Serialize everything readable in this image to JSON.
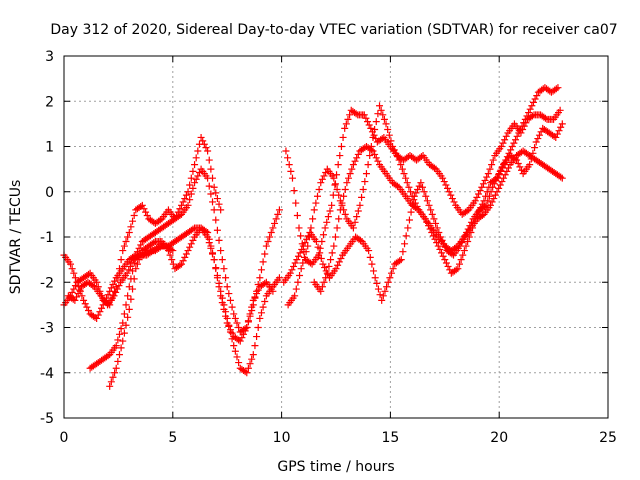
{
  "chart_data": {
    "type": "scatter",
    "title": "Day 312 of 2020, Sidereal Day-to-day VTEC variation (SDTVAR) for receiver ca07",
    "xlabel": "GPS time / hours",
    "ylabel": "SDTVAR / TECUs",
    "xlim": [
      0,
      25
    ],
    "ylim": [
      -5,
      3
    ],
    "xticks": [
      "0",
      "5",
      "10",
      "15",
      "20",
      "25"
    ],
    "yticks": [
      "-5",
      "-4",
      "-3",
      "-2",
      "-1",
      "0",
      "1",
      "2",
      "3"
    ],
    "grid": true,
    "marker": "+",
    "color": "#ff0000",
    "series": [
      {
        "x": [
          0.0,
          0.3,
          0.6,
          0.9,
          1.2,
          1.5,
          1.8,
          2.1,
          2.4,
          2.7,
          3.0,
          3.3,
          3.6,
          3.9,
          4.2,
          4.5,
          4.8,
          5.1,
          5.4,
          5.7,
          6.0,
          6.3,
          6.6,
          6.9,
          7.2
        ],
        "values": [
          -2.5,
          -2.3,
          -2.0,
          -1.9,
          -1.8,
          -2.0,
          -2.4,
          -2.5,
          -2.1,
          -1.3,
          -0.9,
          -0.4,
          -0.3,
          -0.6,
          -0.7,
          -0.6,
          -0.4,
          -0.6,
          -0.3,
          0.0,
          0.6,
          1.2,
          0.9,
          0.1,
          -0.4
        ]
      },
      {
        "x": [
          0.0,
          0.3,
          0.6,
          0.9,
          1.2,
          1.5,
          1.8,
          2.1,
          2.4,
          2.7,
          3.0,
          3.3,
          3.6,
          3.9,
          4.2,
          4.5,
          4.8,
          5.1,
          5.4,
          5.7,
          6.0,
          6.3,
          6.6,
          6.9,
          7.2,
          7.5,
          7.8,
          8.1,
          8.4,
          8.7,
          9.0,
          9.3,
          9.6
        ],
        "values": [
          -1.4,
          -1.6,
          -2.0,
          -2.4,
          -2.7,
          -2.8,
          -2.5,
          -2.2,
          -1.9,
          -1.7,
          -1.5,
          -1.4,
          -1.4,
          -1.3,
          -1.3,
          -1.2,
          -1.2,
          -1.1,
          -1.0,
          -0.9,
          -0.8,
          -0.8,
          -1.0,
          -1.5,
          -2.3,
          -2.9,
          -3.2,
          -3.3,
          -3.0,
          -2.4,
          -2.1,
          -2.0,
          -2.2
        ]
      },
      {
        "x": [
          1.2,
          1.5,
          1.8,
          2.1,
          2.4,
          2.7,
          3.0,
          3.3,
          3.6,
          3.9,
          4.2,
          4.5,
          4.8,
          5.1,
          5.4,
          5.7,
          6.0,
          6.3,
          6.6,
          6.9,
          7.2,
          7.5,
          7.8,
          8.1,
          8.4,
          8.7,
          9.0,
          9.3,
          9.6,
          9.9
        ],
        "values": [
          -3.9,
          -3.8,
          -3.7,
          -3.6,
          -3.4,
          -2.9,
          -2.1,
          -1.4,
          -1.1,
          -1.0,
          -0.9,
          -0.8,
          -0.7,
          -0.6,
          -0.5,
          -0.3,
          0.2,
          0.5,
          0.3,
          -0.4,
          -1.3,
          -2.1,
          -2.7,
          -3.1,
          -3.0,
          -2.5,
          -1.9,
          -1.2,
          -0.8,
          -0.4
        ]
      },
      {
        "x": [
          2.1,
          2.4,
          2.7,
          3.0,
          3.3,
          3.6,
          3.9,
          4.2,
          4.5,
          4.8,
          5.1,
          5.4,
          5.7,
          6.0,
          6.3,
          6.6,
          6.9,
          7.2,
          7.5,
          7.8,
          8.1,
          8.4,
          8.7,
          9.0,
          9.3,
          9.6,
          9.9
        ],
        "values": [
          -4.3,
          -3.9,
          -3.3,
          -2.6,
          -1.7,
          -1.3,
          -1.2,
          -1.1,
          -1.1,
          -1.3,
          -1.7,
          -1.6,
          -1.3,
          -1.0,
          -0.8,
          -0.9,
          -1.5,
          -2.2,
          -2.8,
          -3.4,
          -3.9,
          -4.0,
          -3.6,
          -2.8,
          -2.3,
          -2.1,
          -1.9
        ]
      },
      {
        "x": [
          0.2,
          0.5,
          0.8,
          1.1,
          1.4,
          1.7,
          2.0,
          2.3,
          2.6,
          2.9,
          3.2,
          3.5,
          3.8,
          4.1,
          4.4,
          4.7,
          5.0
        ],
        "values": [
          -2.3,
          -2.4,
          -2.1,
          -2.0,
          -2.1,
          -2.3,
          -2.5,
          -2.3,
          -2.0,
          -1.8,
          -1.5,
          -1.4,
          -1.4,
          -1.3,
          -1.2,
          -1.2,
          -1.3
        ]
      },
      {
        "x": [
          10.2,
          10.5,
          10.8,
          11.1,
          11.4,
          11.7,
          12.0,
          12.3,
          12.6,
          12.9,
          13.2,
          13.5,
          13.8,
          14.1,
          14.4,
          14.7,
          15.0,
          15.3,
          15.6,
          15.9,
          16.2,
          16.5,
          16.8,
          17.1,
          17.4,
          17.7,
          18.0,
          18.3,
          18.6,
          18.9,
          19.2,
          19.5,
          19.8,
          20.1,
          20.4,
          20.7,
          21.0,
          21.3,
          21.6,
          21.9,
          22.2,
          22.5,
          22.8
        ],
        "values": [
          0.9,
          0.3,
          -0.8,
          -1.5,
          -1.6,
          -1.4,
          -0.8,
          -0.3,
          0.6,
          1.4,
          1.8,
          1.7,
          1.7,
          1.4,
          1.1,
          1.2,
          1.0,
          0.8,
          0.7,
          0.8,
          0.7,
          0.8,
          0.6,
          0.5,
          0.3,
          0.0,
          -0.3,
          -0.5,
          -0.4,
          -0.2,
          0.1,
          0.4,
          0.8,
          1.0,
          1.3,
          1.5,
          1.3,
          1.6,
          1.7,
          1.7,
          1.6,
          1.6,
          1.8
        ]
      },
      {
        "x": [
          10.3,
          10.6,
          10.9,
          11.2,
          11.5,
          11.8,
          12.1,
          12.4,
          12.7,
          13.0,
          13.3,
          13.6,
          13.9,
          14.2,
          14.5,
          14.8,
          15.1,
          15.4,
          15.7,
          16.0,
          16.3,
          16.6,
          16.9,
          17.2,
          17.5,
          17.8,
          18.1,
          18.4,
          18.7,
          19.0,
          19.3,
          19.6,
          19.9,
          20.2,
          20.5,
          20.8,
          21.1,
          21.4,
          21.7,
          22.0,
          22.3,
          22.6,
          22.9
        ],
        "values": [
          -2.5,
          -2.3,
          -1.7,
          -1.2,
          -0.4,
          0.2,
          0.5,
          0.3,
          -0.2,
          -0.6,
          -0.8,
          -0.3,
          0.4,
          1.2,
          1.9,
          1.5,
          1.0,
          0.7,
          0.3,
          -0.1,
          -0.4,
          -0.6,
          -0.9,
          -1.2,
          -1.5,
          -1.8,
          -1.7,
          -1.3,
          -0.9,
          -0.5,
          -0.2,
          0.2,
          0.3,
          0.6,
          0.8,
          0.7,
          0.4,
          0.6,
          1.1,
          1.4,
          1.3,
          1.2,
          1.5
        ]
      },
      {
        "x": [
          10.1,
          10.4,
          10.7,
          11.0,
          11.3,
          11.6,
          11.9,
          12.2,
          12.5,
          12.8,
          13.1,
          13.4,
          13.7,
          14.0,
          14.3,
          14.6,
          14.9,
          15.2,
          15.5,
          15.8,
          16.1,
          16.4,
          16.7,
          17.0,
          17.3,
          17.6,
          17.9,
          18.2,
          18.5,
          18.8,
          19.1,
          19.4,
          19.7,
          20.0,
          20.3,
          20.6,
          20.9,
          21.2,
          21.5,
          21.8,
          22.1,
          22.4,
          22.7
        ],
        "values": [
          -2.0,
          -1.8,
          -1.5,
          -1.2,
          -0.9,
          -1.1,
          -1.6,
          -1.9,
          -1.7,
          -1.4,
          -1.2,
          -1.0,
          -1.1,
          -1.3,
          -1.9,
          -2.4,
          -2.0,
          -1.6,
          -1.5,
          -0.8,
          -0.1,
          0.2,
          -0.2,
          -0.6,
          -1.0,
          -1.3,
          -1.4,
          -1.2,
          -0.9,
          -0.6,
          -0.4,
          -0.3,
          0.1,
          0.4,
          0.7,
          1.0,
          1.3,
          1.6,
          1.9,
          2.2,
          2.3,
          2.2,
          2.3
        ]
      },
      {
        "x": [
          11.5,
          11.8,
          12.1,
          12.4,
          12.7,
          13.0,
          13.3,
          13.6,
          13.9,
          14.2,
          14.5,
          14.8,
          15.1,
          15.4,
          15.7,
          16.0,
          16.3,
          16.6,
          16.9,
          17.2,
          17.5,
          17.8,
          18.1,
          18.4,
          18.7,
          19.0,
          19.3,
          19.6,
          19.9,
          20.2,
          20.5,
          20.8,
          21.1,
          21.4,
          21.7,
          22.0,
          22.3,
          22.6,
          22.9
        ],
        "values": [
          -2.0,
          -2.2,
          -1.8,
          -1.2,
          -0.4,
          0.2,
          0.6,
          0.9,
          1.0,
          0.9,
          0.6,
          0.4,
          0.2,
          0.1,
          -0.1,
          -0.3,
          -0.4,
          -0.6,
          -0.8,
          -1.0,
          -1.2,
          -1.3,
          -1.2,
          -1.0,
          -0.8,
          -0.6,
          -0.5,
          -0.3,
          0.0,
          0.3,
          0.6,
          0.8,
          0.9,
          0.8,
          0.7,
          0.6,
          0.5,
          0.4,
          0.3
        ]
      }
    ]
  }
}
